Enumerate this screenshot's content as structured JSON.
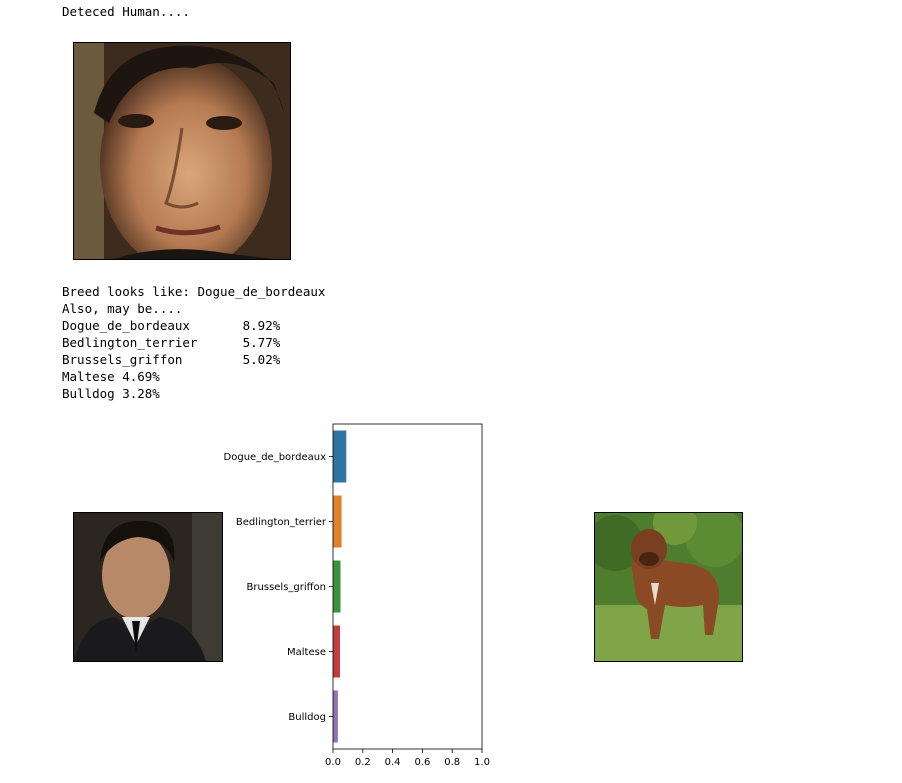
{
  "output": {
    "detected": "Deteced Human....",
    "breed_line": "Breed looks like: Dogue_de_bordeaux",
    "also_line": "Also, may be....",
    "predictions": [
      {
        "label": "Dogue_de_bordeaux",
        "text": "Dogue_de_bordeaux       8.92%"
      },
      {
        "label": "Bedlington_terrier",
        "text": "Bedlington_terrier      5.77%"
      },
      {
        "label": "Brussels_griffon",
        "text": "Brussels_griffon        5.02%"
      },
      {
        "label": "Maltese",
        "text": "Maltese 4.69%"
      },
      {
        "label": "Bulldog",
        "text": "Bulldog 3.28%"
      }
    ]
  },
  "chart_data": {
    "type": "bar",
    "orientation": "horizontal",
    "categories": [
      "Dogue_de_bordeaux",
      "Bedlington_terrier",
      "Brussels_griffon",
      "Maltese",
      "Bulldog"
    ],
    "values": [
      0.0892,
      0.0577,
      0.0502,
      0.0469,
      0.0328
    ],
    "colors": [
      "#3274a1",
      "#e1812c",
      "#3a923a",
      "#c03d3e",
      "#9372b2"
    ],
    "xlim": [
      0,
      1.0
    ],
    "xticks": [
      "0.0",
      "0.2",
      "0.4",
      "0.6",
      "0.8",
      "1.0"
    ],
    "title": "",
    "xlabel": "",
    "ylabel": ""
  }
}
